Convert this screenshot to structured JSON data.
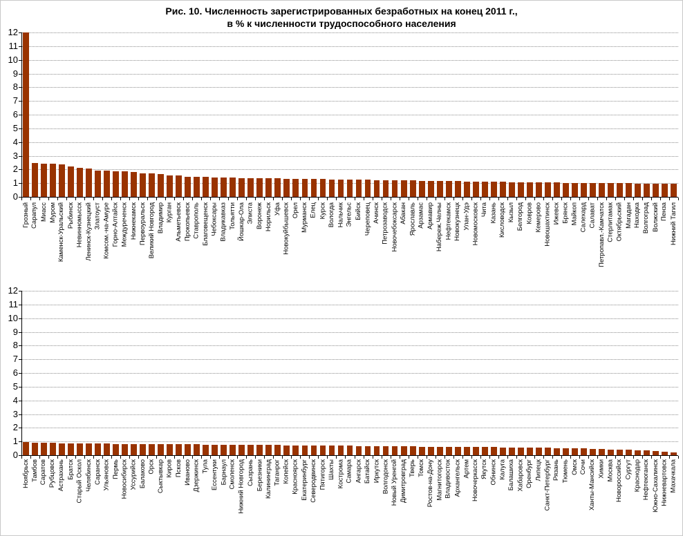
{
  "title_line1": "Рис. 10. Численность зарегистрированных безработных на конец 2011 г.,",
  "title_line2": "в % к численности трудоспособного населения",
  "colors": {
    "bar": "#993300",
    "grid": "#8c8c8c",
    "axis": "#000000",
    "text": "#000000",
    "frame": "#c8c8c8"
  },
  "chart_data": [
    {
      "type": "bar",
      "panel": "top",
      "title": "",
      "xlabel": "",
      "ylabel": "",
      "ylim": [
        0,
        12
      ],
      "ytick_step": 1,
      "grid": true,
      "legend": false,
      "note": "Грозный: столбец обрезан верхней границей оси (значение выше 12)",
      "categories": [
        "Грозный",
        "Сарапул",
        "Миасс",
        "Муром",
        "Каменск-Уральский",
        "Рыбинск",
        "Невинномысск",
        "Ленинск-Кузнецкий",
        "Златоуст",
        "Комсом.-на-Амуре",
        "Горно-Алтайск",
        "Междуреченск",
        "Нижнекамск",
        "Первоуральск",
        "Великий Новгород",
        "Владимир",
        "Курган",
        "Альметьевск",
        "Прокопьевск",
        "Ставрополь",
        "Благовещенск",
        "Чебоксары",
        "Владикавказ",
        "Тольятти",
        "Йошкар-Ола",
        "Элиста",
        "Воронеж",
        "Норильск",
        "Уфа",
        "Новокуйбышевск",
        "Орел",
        "Мурманск",
        "Елец",
        "Курск",
        "Вологда",
        "Нальчик",
        "Энгельс",
        "Бийск",
        "Череповец",
        "Ачинск",
        "Петрозаводск",
        "Новочебоксарск",
        "Абакан",
        "Ярославль",
        "Арзамас",
        "Армавир",
        "Набереж.Челны",
        "Нефтекамск",
        "Новокузнецк",
        "Улан-Удэ",
        "Новомосковск",
        "Чита",
        "Казань",
        "Кисловодск",
        "Кызыл",
        "Белгород",
        "Ковров",
        "Кемерово",
        "Новошахтинск",
        "Ижевск",
        "Брянск",
        "Майкоп",
        "Салехард",
        "Салават",
        "Петропавл.-Камчатск",
        "Стерлитамак",
        "Октябрьский",
        "Магадан",
        "Находка",
        "Волгоград",
        "Волжский",
        "Пенза",
        "Нижний Тагил"
      ],
      "values": [
        12,
        2.45,
        2.43,
        2.42,
        2.36,
        2.22,
        2.12,
        2.07,
        1.94,
        1.93,
        1.87,
        1.86,
        1.81,
        1.72,
        1.71,
        1.66,
        1.57,
        1.56,
        1.47,
        1.46,
        1.45,
        1.41,
        1.4,
        1.39,
        1.38,
        1.37,
        1.36,
        1.35,
        1.34,
        1.33,
        1.32,
        1.31,
        1.3,
        1.29,
        1.28,
        1.27,
        1.26,
        1.25,
        1.24,
        1.23,
        1.22,
        1.21,
        1.2,
        1.19,
        1.18,
        1.17,
        1.16,
        1.15,
        1.14,
        1.13,
        1.12,
        1.11,
        1.1,
        1.09,
        1.08,
        1.07,
        1.06,
        1.05,
        1.05,
        1.04,
        1.03,
        1.02,
        1.02,
        1.01,
        1.0,
        1.0,
        0.99,
        0.99,
        0.98,
        0.98,
        0.97,
        0.96,
        0.95
      ]
    },
    {
      "type": "bar",
      "panel": "bottom",
      "title": "",
      "xlabel": "",
      "ylabel": "",
      "ylim": [
        0,
        12
      ],
      "ytick_step": 1,
      "grid": true,
      "legend": false,
      "categories": [
        "Ноябрьск",
        "Тамбов",
        "Саратов",
        "Рубцовск",
        "Астрахань",
        "Братск",
        "Старый Оскол",
        "Челябинск",
        "Саранск",
        "Ульяновск",
        "Пермь",
        "Новосибирск",
        "Уссурийск",
        "Балаково",
        "Орск",
        "Сыктывкар",
        "Киров",
        "Псков",
        "Иваново",
        "Дзержинск",
        "Тула",
        "Ессентуки",
        "Барнаул",
        "Смоленск",
        "Нижний Новгород",
        "Сызрань",
        "Березники",
        "Калининград",
        "Таганрог",
        "Копейск",
        "Красноярск",
        "Екатеринбург",
        "Северодвинск",
        "Пятигорск",
        "Шахты",
        "Кострома",
        "Самара",
        "Ангарск",
        "Батайск",
        "Иркутск",
        "Волгодонск",
        "Новый Уренгой",
        "Димитровград",
        "Тверь",
        "Томск",
        "Ростов-на-Дону",
        "Магнитогорск",
        "Владивосток",
        "Архангельск",
        "Артем",
        "Новочеркасск",
        "Якутск",
        "Обнинск",
        "Калуга",
        "Балашиха",
        "Хабаровск",
        "Оренбург",
        "Липецк",
        "Санкт-Петербург",
        "Рязань",
        "Тюмень",
        "Омск",
        "Сочи",
        "Ханты-Мансийск",
        "Химки",
        "Москва",
        "Новороссийск",
        "Сургут",
        "Краснодар",
        "Нефтеюганск",
        "Южно-Сахалинск",
        "Нижневартовск",
        "Махачкала"
      ],
      "values": [
        0.95,
        0.93,
        0.93,
        0.9,
        0.88,
        0.88,
        0.87,
        0.87,
        0.85,
        0.84,
        0.83,
        0.83,
        0.82,
        0.82,
        0.81,
        0.8,
        0.8,
        0.8,
        0.79,
        0.79,
        0.78,
        0.78,
        0.77,
        0.77,
        0.76,
        0.76,
        0.76,
        0.75,
        0.74,
        0.73,
        0.73,
        0.72,
        0.72,
        0.71,
        0.7,
        0.7,
        0.69,
        0.68,
        0.68,
        0.67,
        0.67,
        0.66,
        0.65,
        0.64,
        0.63,
        0.62,
        0.62,
        0.61,
        0.6,
        0.6,
        0.59,
        0.58,
        0.58,
        0.57,
        0.57,
        0.56,
        0.55,
        0.54,
        0.53,
        0.52,
        0.51,
        0.5,
        0.48,
        0.46,
        0.44,
        0.42,
        0.4,
        0.38,
        0.36,
        0.33,
        0.3,
        0.27,
        0.22
      ]
    }
  ]
}
